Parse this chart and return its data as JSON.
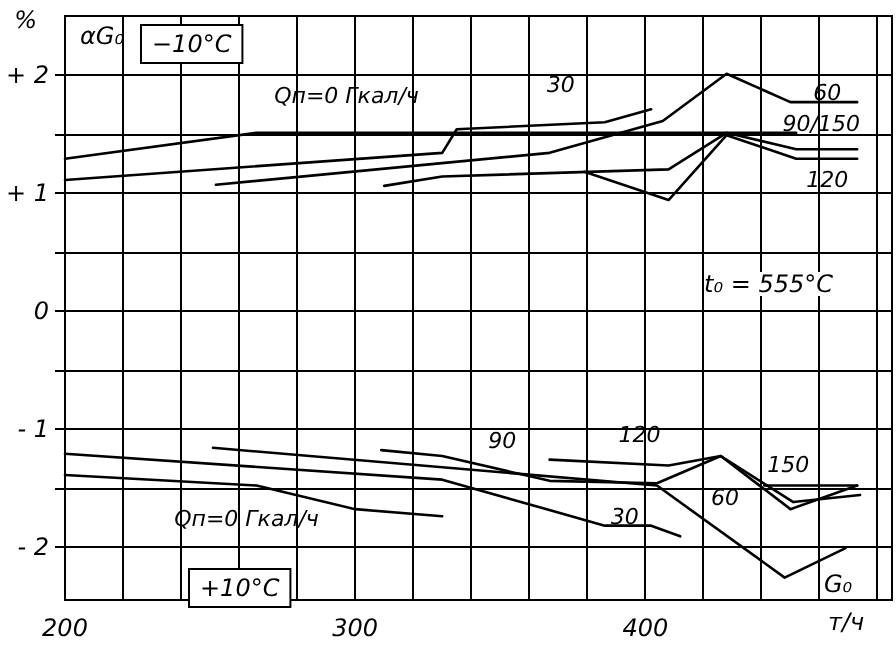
{
  "chart_data": {
    "type": "line",
    "ylabel": "%",
    "xlabel": "т/ч",
    "annotations": [
      "αG₀",
      "−10°C",
      "t₀ = 555°C",
      "+10°C",
      "G₀"
    ],
    "xlim": [
      200,
      485
    ],
    "ylim": [
      -2.45,
      2.5
    ],
    "xticks": [
      200,
      {
        "value": 220,
        "label": null
      },
      {
        "value": 240,
        "label": null
      },
      {
        "value": 260,
        "label": null
      },
      {
        "value": 280,
        "label": null
      },
      300,
      {
        "value": 320,
        "label": null
      },
      {
        "value": 340,
        "label": null
      },
      {
        "value": 360,
        "label": null
      },
      {
        "value": 380,
        "label": null
      },
      400,
      {
        "value": 420,
        "label": null
      },
      {
        "value": 440,
        "label": null
      },
      {
        "value": 460,
        "label": null
      },
      {
        "value": 480,
        "label": null
      }
    ],
    "yticks": [
      {
        "value": -2,
        "label": "- 2"
      },
      {
        "value": -1.5,
        "label": null
      },
      {
        "value": -1,
        "label": "- 1"
      },
      {
        "value": -0.5,
        "label": null
      },
      0,
      {
        "value": 0.5,
        "label": null
      },
      {
        "value": 1,
        "label": "+ 1"
      },
      {
        "value": 1.5,
        "label": null
      },
      {
        "value": 2,
        "label": "+ 2"
      }
    ],
    "grid": true,
    "marker": "none",
    "line_style": "solid",
    "series": [
      {
        "name": "Qп=0 Гкал/ч",
        "color": "#000000",
        "x": [
          200,
          266,
          452
        ],
        "values": [
          1.29,
          1.51,
          1.51
        ]
      },
      {
        "name": "30",
        "color": "#000000",
        "x": [
          200,
          330,
          335,
          386,
          402
        ],
        "values": [
          1.11,
          1.34,
          1.54,
          1.6,
          1.71
        ]
      },
      {
        "name": "60",
        "color": "#000000",
        "x": [
          252,
          367,
          406,
          428,
          450,
          473
        ],
        "values": [
          1.07,
          1.34,
          1.61,
          2.01,
          1.77,
          1.77
        ]
      },
      {
        "name": "90/150",
        "color": "#000000",
        "x": [
          310,
          330,
          408,
          428,
          452,
          473
        ],
        "values": [
          1.06,
          1.14,
          1.2,
          1.51,
          1.37,
          1.37
        ]
      },
      {
        "name": "120",
        "color": "#000000",
        "x": [
          379,
          408,
          428,
          452,
          473
        ],
        "values": [
          1.18,
          0.94,
          1.49,
          1.29,
          1.29
        ]
      },
      {
        "name": "Qп=0 Гкал/ч",
        "color": "#000000",
        "x": [
          200,
          266,
          300,
          330
        ],
        "values": [
          -1.39,
          -1.48,
          -1.68,
          -1.74
        ]
      },
      {
        "name": "30",
        "color": "#000000",
        "x": [
          200,
          330,
          386,
          402,
          412
        ],
        "values": [
          -1.21,
          -1.43,
          -1.82,
          -1.82,
          -1.91
        ]
      },
      {
        "name": "60",
        "color": "#000000",
        "x": [
          251,
          404,
          448,
          469
        ],
        "values": [
          -1.16,
          -1.48,
          -2.26,
          -2.01
        ]
      },
      {
        "name": "90",
        "color": "#000000",
        "x": [
          309,
          330,
          367,
          404,
          426,
          450,
          473
        ],
        "values": [
          -1.18,
          -1.23,
          -1.44,
          -1.46,
          -1.23,
          -1.68,
          -1.48
        ]
      },
      {
        "name": "120",
        "color": "#000000",
        "x": [
          367,
          408,
          426,
          451,
          474
        ],
        "values": [
          -1.26,
          -1.31,
          -1.23,
          -1.62,
          -1.56
        ]
      },
      {
        "name": "150",
        "color": "#000000",
        "x": [
          441,
          473
        ],
        "values": [
          -1.48,
          -1.48
        ]
      }
    ]
  }
}
